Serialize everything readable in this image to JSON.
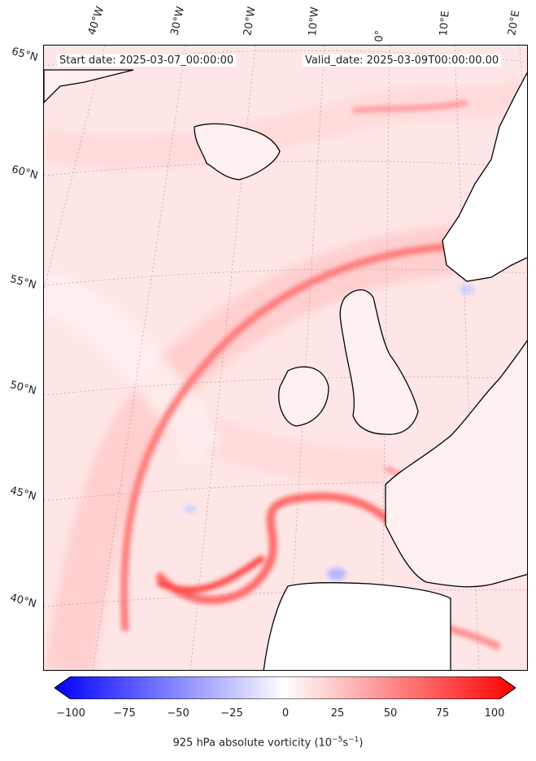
{
  "header": {
    "start_date": "Start date: 2025-03-07_00:00:00",
    "valid_date": "Valid_date: 2025-03-09T00:00:00.00"
  },
  "longitude_labels": [
    "40°W",
    "30°W",
    "20°W",
    "10°W",
    "0°",
    "10°E",
    "20°E"
  ],
  "latitude_labels": [
    "65°N",
    "60°N",
    "55°N",
    "50°N",
    "45°N",
    "40°N"
  ],
  "colorbar": {
    "ticks": [
      "−100",
      "−75",
      "−50",
      "−25",
      "0",
      "25",
      "50",
      "75",
      "100"
    ],
    "label": "925 hPa absolute vorticity (10",
    "label_exp1": "−5",
    "label_mid": "s",
    "label_exp2": "−1",
    "label_end": ")",
    "colors": {
      "min": "#0000ff",
      "mid": "#ffffff",
      "max": "#ff0000"
    },
    "range": [
      -100,
      100
    ]
  },
  "colors": {
    "land": "#ffffff",
    "coast": "#000000",
    "grid": "#9a9a9a"
  }
}
